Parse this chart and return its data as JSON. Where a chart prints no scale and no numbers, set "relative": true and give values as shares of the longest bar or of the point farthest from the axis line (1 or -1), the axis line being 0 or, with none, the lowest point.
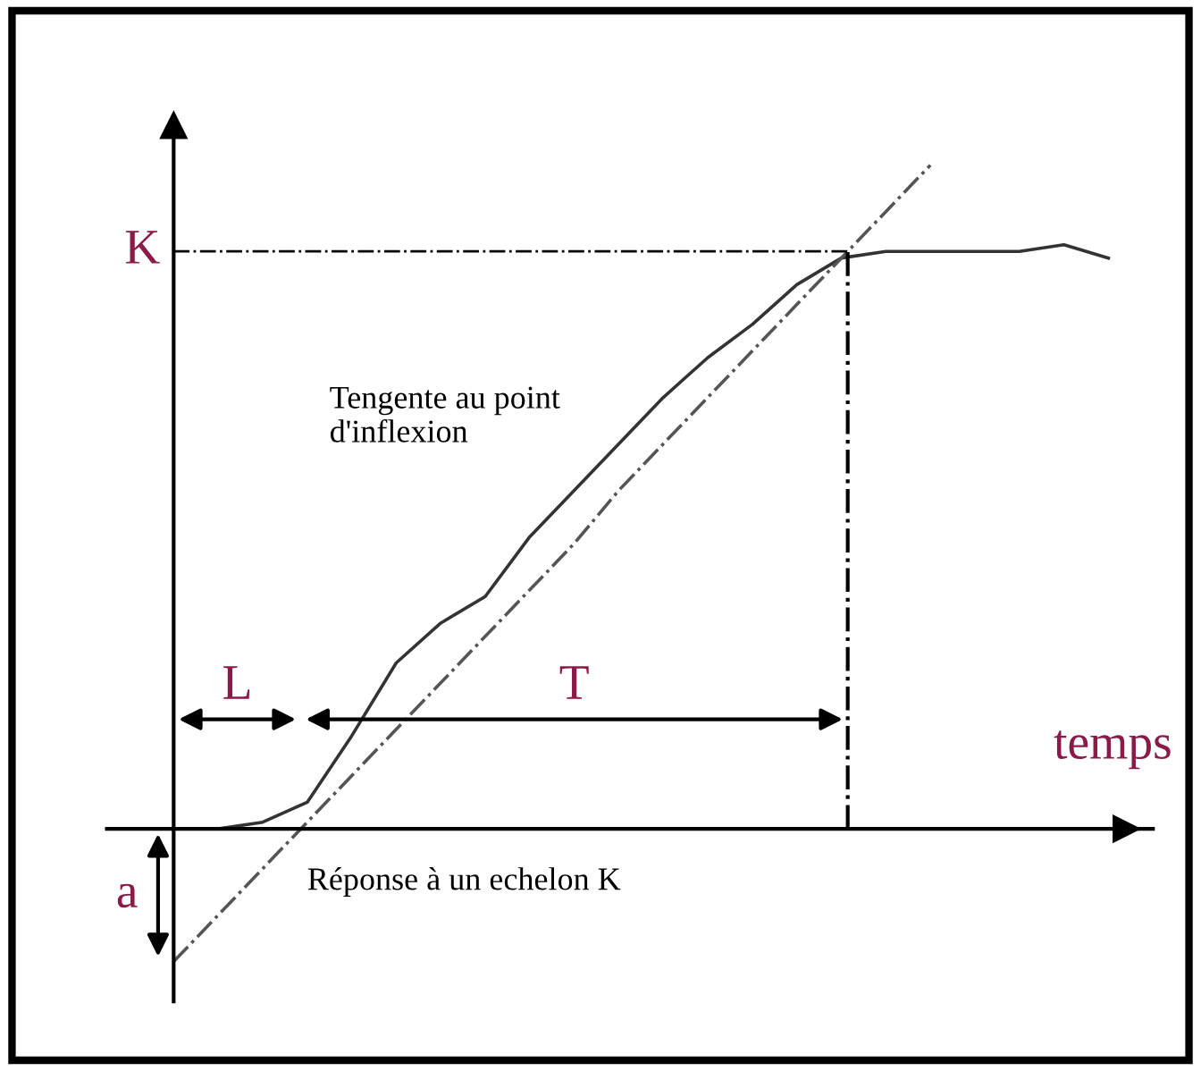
{
  "chart_data": {
    "type": "line",
    "relative": true,
    "xlabel": "temps",
    "categories": [
      null,
      null,
      null,
      null,
      null,
      null,
      null,
      null,
      null,
      null,
      null,
      null,
      null,
      null,
      null,
      null,
      null,
      null,
      null,
      null,
      null,
      null
    ],
    "series": [
      {
        "color": "#333333",
        "line_style": "solid",
        "values": [
          0,
          0,
          0.01,
          0.04,
          0.14,
          0.25,
          0.31,
          0.35,
          0.44,
          0.51,
          0.58,
          0.65,
          0.71,
          0.76,
          0.82,
          0.86,
          0.87,
          0.87,
          0.87,
          0.87,
          0.88,
          0.86
        ]
      },
      {
        "color": "#555555",
        "line_style": "dashdot",
        "values": [
          -0.2,
          -0.13,
          -0.06,
          0.01,
          0.08,
          0.15,
          0.22,
          0.29,
          0.36,
          0.43,
          0.51,
          0.58,
          0.65,
          0.72,
          0.79,
          0.86,
          0.93,
          1.0,
          null,
          null,
          null,
          null
        ]
      }
    ],
    "ref_lines": [
      {
        "axis": "y",
        "value": 0.87,
        "label": "K",
        "line_style": "dashdot",
        "color": "#000000"
      }
    ],
    "annotations": [
      "Tengente au point\nd'inflexion",
      "L",
      "T",
      "a",
      "Réponse à un echelon K"
    ],
    "legend": false
  }
}
